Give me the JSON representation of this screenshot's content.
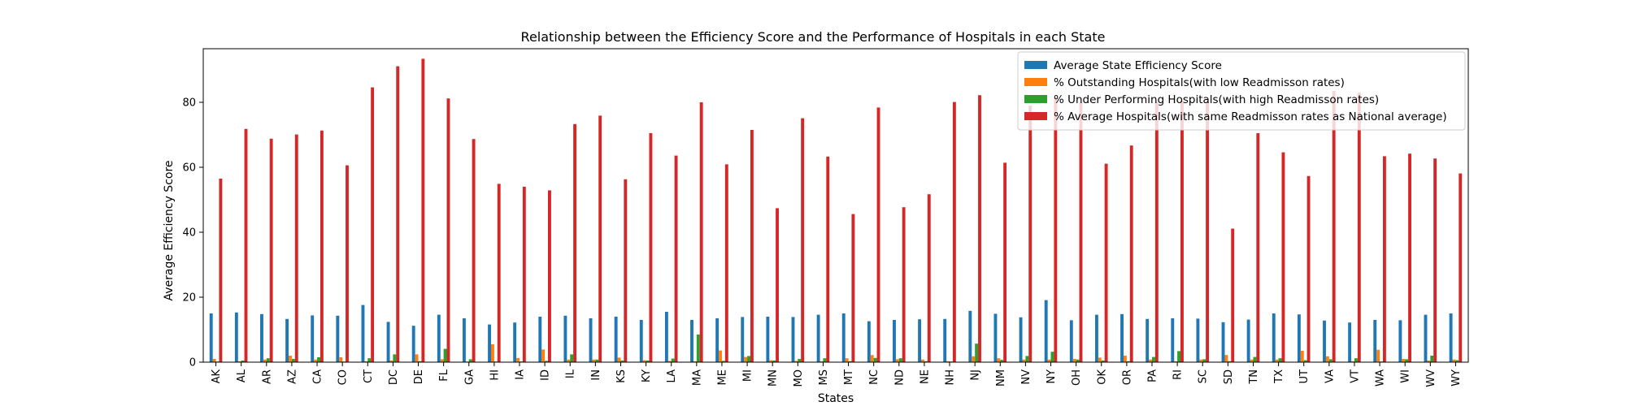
{
  "chart_data": {
    "type": "bar",
    "title": "Relationship between the Efficiency Score and the Performance of Hospitals in each State",
    "xlabel": "States",
    "ylabel": "Average Efficiency Score",
    "ylim": [
      0,
      96.5
    ],
    "yticks": [
      0,
      20,
      40,
      60,
      80
    ],
    "grid": false,
    "legend_position": "top-right",
    "categories": [
      "AK",
      "AL",
      "AR",
      "AZ",
      "CA",
      "CO",
      "CT",
      "DC",
      "DE",
      "FL",
      "GA",
      "HI",
      "IA",
      "ID",
      "IL",
      "IN",
      "KS",
      "KY",
      "LA",
      "MA",
      "ME",
      "MI",
      "MN",
      "MO",
      "MS",
      "MT",
      "NC",
      "ND",
      "NE",
      "NH",
      "NJ",
      "NM",
      "NV",
      "NY",
      "OH",
      "OK",
      "OR",
      "PA",
      "RI",
      "SC",
      "SD",
      "TN",
      "TX",
      "UT",
      "VA",
      "VT",
      "WA",
      "WI",
      "WV",
      "WY"
    ],
    "series": [
      {
        "name": "Average State Efficiency Score",
        "color": "#1f77b4",
        "values": [
          15.0,
          15.3,
          14.8,
          13.3,
          14.4,
          14.3,
          17.6,
          12.4,
          11.2,
          14.6,
          13.5,
          11.6,
          12.2,
          14.0,
          14.3,
          13.5,
          14.0,
          13.0,
          15.5,
          13.0,
          13.5,
          13.9,
          14.0,
          13.9,
          14.6,
          15.0,
          12.6,
          13.0,
          13.2,
          13.3,
          15.8,
          14.9,
          13.8,
          19.1,
          12.9,
          14.6,
          14.8,
          13.3,
          13.5,
          13.4,
          12.3,
          13.1,
          15.0,
          14.7,
          12.8,
          12.2,
          13.0,
          12.9,
          14.6,
          15.0
        ]
      },
      {
        "name": "% Outstanding Hospitals(with low Readmisson rates)",
        "color": "#ff7f0e",
        "values": [
          1.0,
          0.3,
          0.8,
          2.0,
          0.8,
          1.5,
          0.3,
          0.5,
          2.4,
          0.9,
          0.2,
          5.5,
          1.3,
          3.9,
          0.8,
          0.8,
          1.4,
          0.6,
          0.4,
          0.3,
          3.6,
          1.6,
          0.6,
          0.4,
          0.3,
          1.2,
          2.2,
          0.9,
          0.8,
          0.3,
          1.8,
          1.2,
          0.8,
          0.8,
          1.0,
          1.4,
          2.0,
          0.8,
          0.3,
          0.8,
          2.2,
          0.8,
          0.8,
          3.5,
          1.8,
          0.3,
          3.8,
          1.0,
          0.5,
          0.8
        ]
      },
      {
        "name": "% Under Performing Hospitals(with high Readmisson rates)",
        "color": "#2ca02c",
        "values": [
          0.2,
          0.5,
          1.2,
          1.0,
          1.5,
          0.2,
          1.2,
          2.4,
          0.3,
          4.1,
          0.9,
          0.2,
          0.2,
          0.4,
          2.4,
          0.8,
          0.5,
          0.5,
          1.1,
          8.5,
          0.4,
          1.9,
          0.5,
          1.0,
          1.2,
          0.3,
          1.3,
          1.2,
          0.3,
          0.2,
          5.7,
          0.7,
          1.9,
          3.2,
          0.8,
          0.5,
          0.3,
          1.6,
          3.4,
          0.9,
          0.3,
          1.6,
          1.2,
          0.6,
          0.9,
          1.2,
          0.2,
          0.9,
          2.0,
          0.6
        ]
      },
      {
        "name": "% Average Hospitals(with same Readmisson rates as National average)",
        "color": "#d62728",
        "values": [
          56.5,
          71.8,
          68.8,
          70.1,
          71.3,
          60.6,
          84.6,
          91.1,
          93.4,
          81.2,
          68.7,
          54.9,
          54.0,
          52.9,
          73.3,
          75.9,
          56.3,
          70.5,
          63.6,
          80.0,
          60.9,
          71.5,
          47.4,
          75.1,
          63.3,
          45.6,
          78.4,
          47.7,
          51.7,
          80.1,
          82.2,
          61.4,
          79.0,
          81.5,
          80.0,
          61.1,
          66.7,
          80.0,
          80.5,
          80.0,
          41.1,
          70.5,
          64.6,
          57.3,
          83.5,
          83.0,
          63.4,
          64.2,
          62.7,
          58.1
        ]
      }
    ]
  }
}
